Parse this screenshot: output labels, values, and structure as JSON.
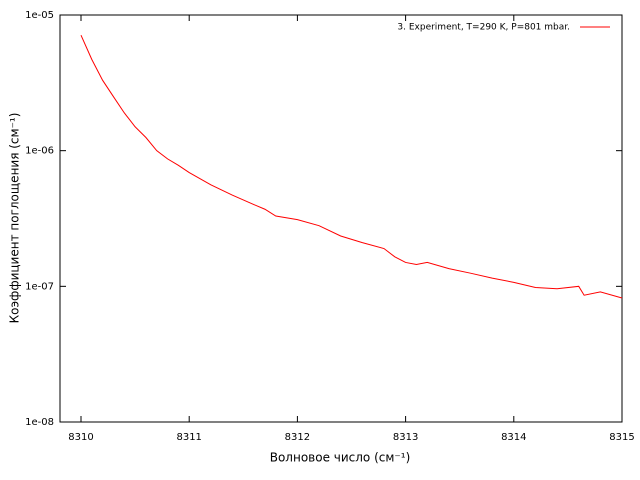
{
  "chart_data": {
    "type": "line",
    "xlabel": "Волновое число (см⁻¹)",
    "ylabel": "Коэффициент поглощения (см⁻¹)",
    "log_y": true,
    "legend": "top-right",
    "xlim": [
      8310,
      8315
    ],
    "xticks": [
      8310,
      8311,
      8312,
      8313,
      8314,
      8315
    ],
    "ylim": [
      1e-08,
      1e-05
    ],
    "yticks": [
      {
        "value": 1e-08,
        "label": "1e-08"
      },
      {
        "value": 1e-07,
        "label": "1e-07"
      },
      {
        "value": 1e-06,
        "label": "1e-06"
      },
      {
        "value": 1e-05,
        "label": "1e-05"
      }
    ],
    "x": [
      8310,
      8310.1,
      8310.2,
      8310.3,
      8310.4,
      8310.5,
      8310.6,
      8310.7,
      8310.8,
      8310.9,
      8311,
      8311.2,
      8311.4,
      8311.6,
      8311.7,
      8311.8,
      8312,
      8312.2,
      8312.4,
      8312.6,
      8312.8,
      8312.9,
      8313,
      8313.1,
      8313.2,
      8313.4,
      8313.6,
      8313.8,
      8314,
      8314.2,
      8314.4,
      8314.6,
      8314.65,
      8314.8,
      8315
    ],
    "series": [
      {
        "name": "3. Experiment, T=290 K, P=801 mbar.",
        "color": "#ff0000",
        "values": [
          7.1e-06,
          4.7e-06,
          3.3e-06,
          2.5e-06,
          1.9e-06,
          1.5e-06,
          1.25e-06,
          1e-06,
          8.7e-07,
          7.8e-07,
          6.9e-07,
          5.6e-07,
          4.7e-07,
          4e-07,
          3.7e-07,
          3.3e-07,
          3.1e-07,
          2.8e-07,
          2.35e-07,
          2.1e-07,
          1.9e-07,
          1.65e-07,
          1.5e-07,
          1.45e-07,
          1.5e-07,
          1.35e-07,
          1.25e-07,
          1.15e-07,
          1.07e-07,
          9.8e-08,
          9.6e-08,
          1e-07,
          8.6e-08,
          9.1e-08,
          8.2e-08
        ]
      }
    ]
  }
}
